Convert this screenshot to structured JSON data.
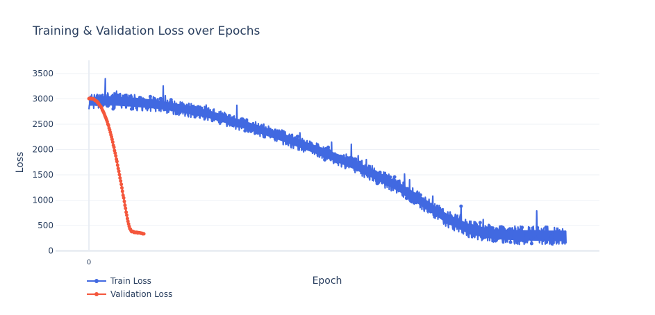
{
  "chart_data": {
    "type": "line",
    "title": "Training & Validation Loss over Epochs",
    "xlabel": "Epoch",
    "ylabel": "Loss",
    "y_ticks": [
      0,
      500,
      1000,
      1500,
      2000,
      2500,
      3000,
      3500
    ],
    "y_tick_labels": [
      "0",
      "500",
      "1000",
      "1500",
      "2000",
      "2500",
      "3000",
      "3500"
    ],
    "x_ticks": [
      0
    ],
    "x_tick_labels": [
      "0"
    ],
    "xlim": [
      -0.07,
      1.07
    ],
    "ylim": [
      -5,
      3650
    ],
    "grid": true,
    "legend_position": "bottom-left",
    "series": [
      {
        "name": "Train Loss",
        "color": "#4169e1",
        "marker": "circle",
        "x": [
          0,
          0.05,
          0.1,
          0.15,
          0.2,
          0.25,
          0.3,
          0.35,
          0.4,
          0.45,
          0.5,
          0.55,
          0.6,
          0.65,
          0.7,
          0.75,
          0.8,
          0.85,
          0.9,
          0.95,
          1.0
        ],
        "y": [
          2950,
          2960,
          2930,
          2880,
          2800,
          2700,
          2560,
          2420,
          2260,
          2090,
          1910,
          1720,
          1500,
          1260,
          960,
          640,
          420,
          330,
          310,
          300,
          300
        ],
        "spread": [
          230,
          240,
          240,
          220,
          210,
          200,
          200,
          200,
          210,
          210,
          220,
          220,
          230,
          240,
          240,
          250,
          260,
          260,
          270,
          270,
          270
        ]
      },
      {
        "name": "Validation Loss",
        "color": "#f4573c",
        "marker": "circle",
        "x": [
          0,
          0.005,
          0.01,
          0.015,
          0.02,
          0.025,
          0.03,
          0.035,
          0.04,
          0.045,
          0.05,
          0.055,
          0.06,
          0.065,
          0.07,
          0.075,
          0.08,
          0.085,
          0.09,
          0.095,
          0.1,
          0.105,
          0.11,
          0.115
        ],
        "y": [
          3010,
          3005,
          2990,
          2960,
          2910,
          2840,
          2750,
          2640,
          2500,
          2330,
          2140,
          1930,
          1700,
          1450,
          1190,
          920,
          660,
          450,
          380,
          370,
          365,
          358,
          350,
          340
        ]
      }
    ]
  }
}
